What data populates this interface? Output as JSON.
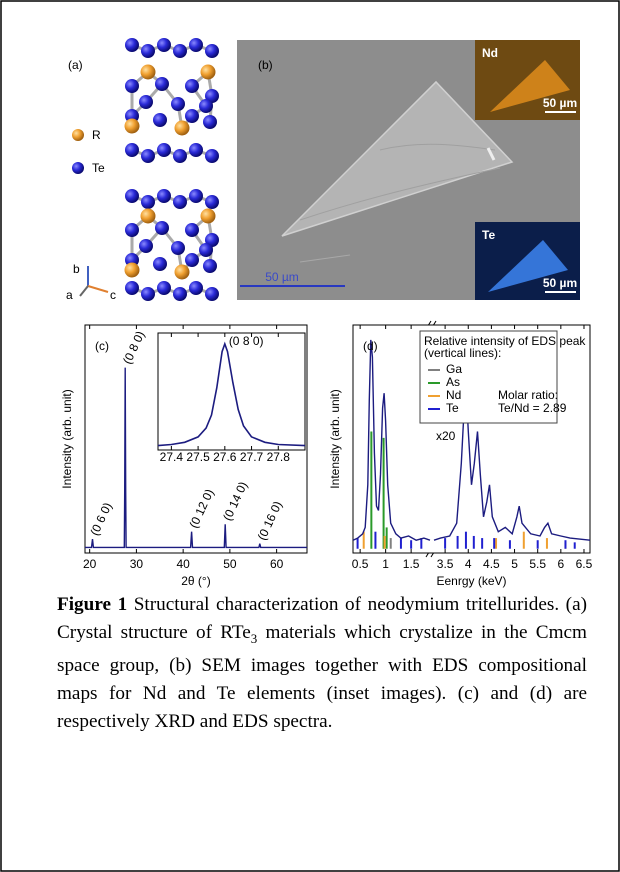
{
  "panel_a": {
    "label": "(a)",
    "legend": [
      "R",
      "Te"
    ],
    "axes": [
      "b",
      "a",
      "c"
    ]
  },
  "panel_b": {
    "label": "(b)",
    "scale_bar": "50 µm",
    "inset_nd": {
      "label": "Nd",
      "scale_bar": "50 µm"
    },
    "inset_te": {
      "label": "Te",
      "scale_bar": "50 µm"
    }
  },
  "chart_data": [
    {
      "type": "line",
      "panel_label": "(c)",
      "x_label": "2θ (°)",
      "y_label": "Intensity (arb. unit)",
      "x": [
        19,
        20.4,
        20.6,
        20.8,
        27.4,
        27.5,
        27.6,
        27.7,
        27.8,
        41.6,
        41.8,
        42.0,
        48.8,
        49.0,
        49.2,
        56.2,
        56.4,
        56.6,
        66.5
      ],
      "series": [
        {
          "color": "#1c1c80",
          "values": [
            0,
            0,
            0.045,
            0,
            0,
            0.3,
            0.97,
            0.3,
            0,
            0,
            0.085,
            0,
            0,
            0.125,
            0,
            0,
            0.02,
            0,
            0
          ]
        }
      ],
      "xlim": [
        19,
        66.5
      ],
      "ylim": [
        -0.03,
        1.2
      ],
      "xticks": [
        20,
        30,
        40,
        50,
        60
      ],
      "annotations": [
        {
          "text": "(0 6 0)",
          "x": 20.6,
          "y": 0.045
        },
        {
          "text": "(0 8 0)",
          "x": 27.6,
          "y": 0.97
        },
        {
          "text": "(0 12 0)",
          "x": 41.8,
          "y": 0.085
        },
        {
          "text": "(0 14 0)",
          "x": 49.0,
          "y": 0.125
        },
        {
          "text": "(0 16 0)",
          "x": 56.4,
          "y": 0.02
        }
      ]
    },
    {
      "type": "line",
      "x": [
        27.35,
        27.4,
        27.45,
        27.5,
        27.53,
        27.55,
        27.57,
        27.59,
        27.6,
        27.61,
        27.63,
        27.65,
        27.67,
        27.7,
        27.75,
        27.8,
        27.9
      ],
      "series": [
        {
          "color": "#1c1c80",
          "values": [
            0.02,
            0.03,
            0.05,
            0.1,
            0.18,
            0.3,
            0.55,
            0.88,
            0.95,
            0.88,
            0.6,
            0.35,
            0.2,
            0.1,
            0.05,
            0.03,
            0.02
          ]
        }
      ],
      "xlim": [
        27.35,
        27.9
      ],
      "ylim": [
        -0.02,
        1.05
      ],
      "xticks": [
        27.4,
        27.5,
        27.6,
        27.7,
        27.8
      ],
      "annotations": [
        {
          "text": "(0 8 0)",
          "x": 27.6,
          "y": 0.95
        }
      ]
    },
    {
      "type": "line",
      "panel_label": "(d)",
      "x_label": "Eenrgy (keV)",
      "y_label": "Intensity (arb. unit)",
      "break_label": "x20",
      "x": [
        0.36,
        0.45,
        0.55,
        0.6,
        0.65,
        0.68,
        0.71,
        0.74,
        0.78,
        0.82,
        0.86,
        0.9,
        0.94,
        0.97,
        1.0,
        1.04,
        1.1,
        1.2,
        1.3,
        1.45,
        1.6,
        1.75,
        1.87,
        null,
        3.26,
        3.4,
        3.6,
        3.75,
        3.85,
        3.92,
        3.96,
        4.0,
        4.07,
        4.13,
        4.2,
        4.26,
        4.33,
        4.4,
        4.46,
        4.52,
        4.65,
        4.8,
        4.95,
        5.05,
        5.1,
        5.16,
        5.35,
        5.55,
        5.65,
        5.72,
        5.8,
        6.0,
        6.2,
        6.63
      ],
      "series": [
        {
          "color": "#1c1c80",
          "values": [
            0.04,
            0.05,
            0.07,
            0.1,
            0.3,
            0.7,
            0.98,
            0.9,
            0.45,
            0.2,
            0.18,
            0.35,
            0.66,
            0.73,
            0.6,
            0.3,
            0.12,
            0.07,
            0.05,
            0.06,
            0.04,
            0.05,
            0.04,
            null,
            0.04,
            0.05,
            0.06,
            0.12,
            0.4,
            0.7,
            0.73,
            0.55,
            0.3,
            0.4,
            0.55,
            0.35,
            0.15,
            0.22,
            0.3,
            0.15,
            0.08,
            0.1,
            0.07,
            0.15,
            0.2,
            0.12,
            0.07,
            0.06,
            0.1,
            0.12,
            0.07,
            0.06,
            0.05,
            0.04
          ]
        }
      ],
      "xlim": [
        0.36,
        6.63
      ],
      "xbreak": [
        1.87,
        3.26
      ],
      "ylim": [
        -0.02,
        1.05
      ],
      "xticks": [
        0.5,
        1,
        1.5,
        3.5,
        4,
        4.5,
        5,
        5.5,
        6,
        6.5
      ],
      "legend_title": [
        "Relative intensity of EDS peak",
        "(vertical lines):"
      ],
      "markers": [
        {
          "name": "Ga",
          "color": "#808080",
          "positions": [
            1.1
          ],
          "heights": [
            0.05
          ]
        },
        {
          "name": "As",
          "color": "#2a9a2a",
          "positions": [
            0.72,
            0.96,
            1.02
          ],
          "heights": [
            0.55,
            0.52,
            0.1
          ]
        },
        {
          "name": "Nd",
          "color": "#f0a030",
          "positions": [
            0.57,
            0.98,
            4.6,
            5.2,
            5.7,
            6.1
          ],
          "heights": [
            0.08,
            0.06,
            0.05,
            0.08,
            0.05,
            0.03
          ]
        },
        {
          "name": "Te",
          "color": "#2020d0",
          "positions": [
            0.45,
            0.8,
            1.3,
            1.5,
            1.7,
            3.5,
            3.77,
            3.95,
            4.12,
            4.3,
            4.56,
            4.9,
            5.5,
            6.1,
            6.3
          ],
          "heights": [
            0.05,
            0.08,
            0.05,
            0.04,
            0.05,
            0.05,
            0.06,
            0.08,
            0.06,
            0.05,
            0.05,
            0.04,
            0.04,
            0.04,
            0.03
          ]
        }
      ],
      "note": [
        "Molar ratio:",
        "Te/Nd = 2.89"
      ]
    }
  ],
  "caption": {
    "label": "Figure 1",
    "text_1": " Structural characterization of neodymium tritellurides. (a) Crystal structure of RTe",
    "subscript": "3",
    "text_2": " materials which crystalize in the Cmcm space group, (b) SEM images together with EDS compositional maps for Nd and Te elements (inset images). (c) and (d) are respectively XRD and EDS spectra."
  }
}
